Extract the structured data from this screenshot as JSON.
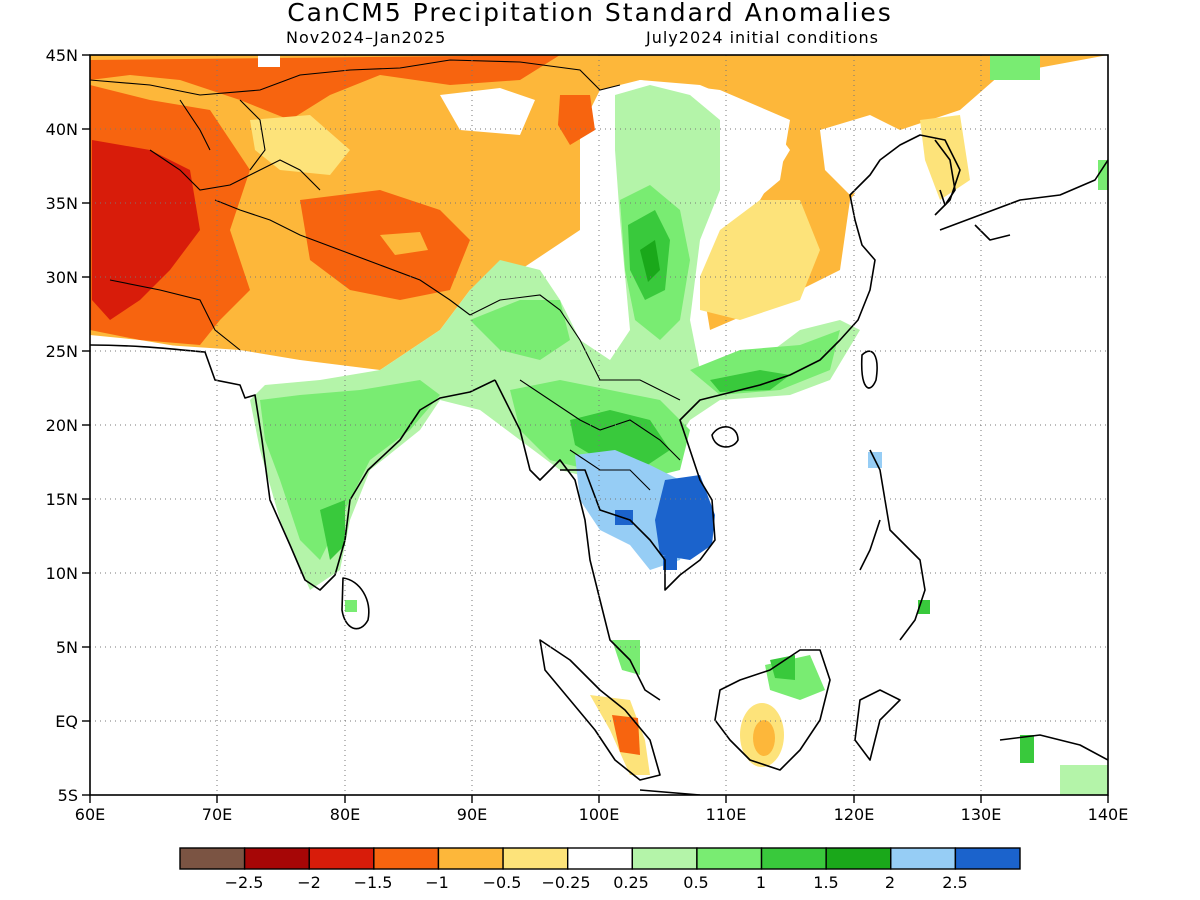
{
  "title": "CanCM5 Precipitation Standard Anomalies",
  "subtitle_left": "Nov2024–Jan2025",
  "subtitle_right": "July2024 initial conditions",
  "map": {
    "lon_range": [
      60,
      140
    ],
    "lat_range": [
      -5,
      45
    ],
    "lon_ticks": [
      "60E",
      "70E",
      "80E",
      "90E",
      "100E",
      "110E",
      "120E",
      "130E",
      "140E"
    ],
    "lat_ticks": [
      "45N",
      "40N",
      "35N",
      "30N",
      "25N",
      "20N",
      "15N",
      "10N",
      "5N",
      "EQ",
      "5S"
    ],
    "gridlines": "dotted"
  },
  "colorbar": {
    "colors": [
      "#7b5443",
      "#a60606",
      "#d81c0a",
      "#f7640f",
      "#fdb73a",
      "#fde37a",
      "#ffffff",
      "#b4f4a9",
      "#79ec72",
      "#39c93c",
      "#1aa81a",
      "#96cdf5",
      "#1b63cc"
    ],
    "labels": [
      "−2.5",
      "−2",
      "−1.5",
      "−1",
      "−0.5",
      "−0.25",
      "0.25",
      "0.5",
      "1",
      "1.5",
      "2",
      "2.5"
    ]
  }
}
